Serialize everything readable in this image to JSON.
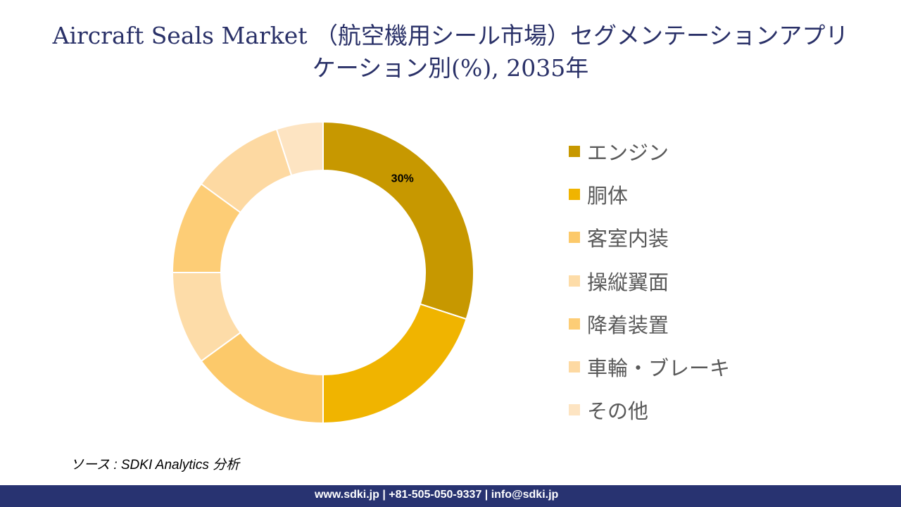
{
  "title_line1": "Aircraft Seals Market （航空機用シール市場）セグメンテーションアプリ",
  "title_line2": "ケーション別(%), 2035年",
  "chart_data": {
    "type": "pie",
    "donut": true,
    "categories": [
      "エンジン",
      "胴体",
      "客室内装",
      "操縦翼面",
      "降着装置",
      "車輪・ブレーキ",
      "その他"
    ],
    "values": [
      30,
      20,
      15,
      10,
      10,
      10,
      5
    ],
    "colors": [
      "#C79800",
      "#F0B400",
      "#FCC96A",
      "#FDDCA8",
      "#FDCD76",
      "#FDD9A2",
      "#FDE4C2"
    ],
    "data_labels": [
      "30%",
      "",
      "",
      "",
      "",
      "",
      ""
    ],
    "legend_position": "right"
  },
  "source": "ソース : SDKI Analytics  分析",
  "footer": "www.sdki.jp | +81-505-050-9337 | info@sdki.jp"
}
